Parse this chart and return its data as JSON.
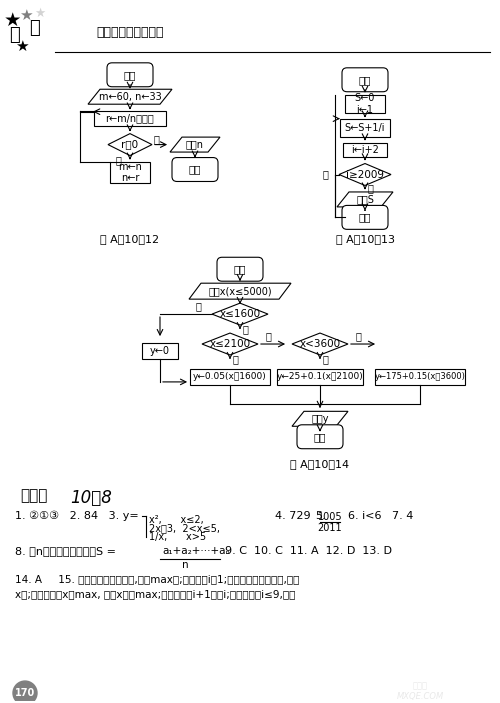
{
  "title_text": "同步题组训练与测评",
  "bg_color": "#ffffff",
  "fig_width": 5.0,
  "fig_height": 7.03,
  "section_title": "第二组  10－8",
  "answers_line1": "1. ②①③   2. 84   3. y=    4. 729   5.     6. i<6   7. 4",
  "answers_line8": "8. 求n个数的算术平均数S =        9. C  10. C  11. A  12. D  13. D",
  "answers_line14": "14. A     15. 第一步：输入一个数,放在max中;第二步：i＝1;第三步：输入一个数,放入",
  "answers_line15": "x中;第四步：若x＞max, 则将x赋予max;第五步：将i+1赋予i;第六步：若i≤9,返回"
}
